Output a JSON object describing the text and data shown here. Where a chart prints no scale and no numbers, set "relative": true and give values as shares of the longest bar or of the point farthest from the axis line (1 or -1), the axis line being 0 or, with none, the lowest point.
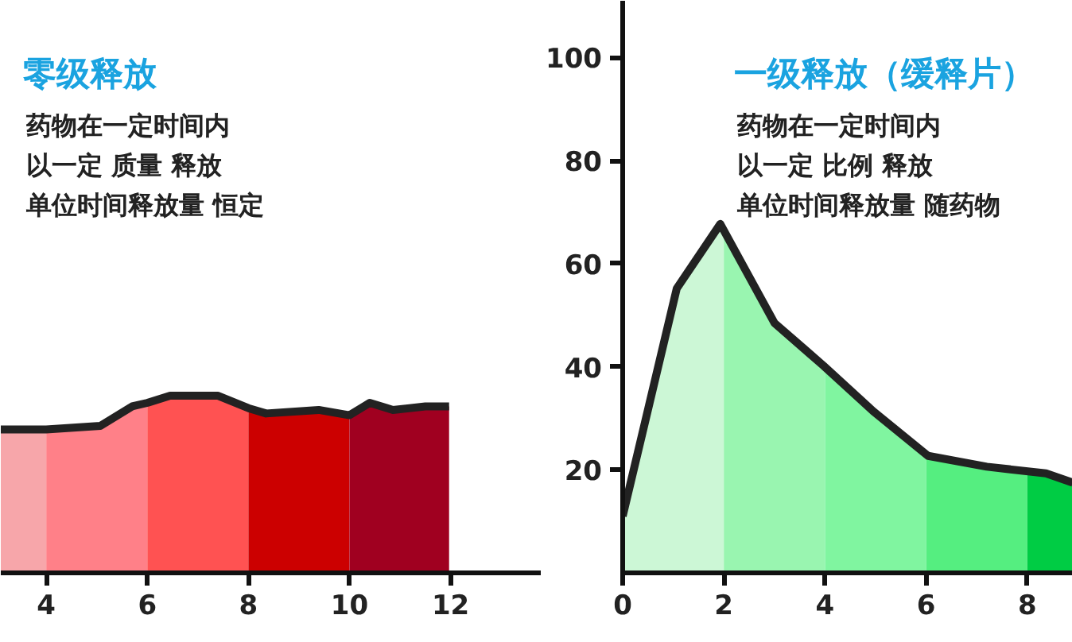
{
  "chart_data": [
    {
      "type": "area",
      "title": "零级释放",
      "annotations": [
        "药物在一定时间内",
        "以一定 质量 释放",
        "单位时间释放量 恒定"
      ],
      "relative": true,
      "xlim": [
        3.1,
        13.8
      ],
      "xticks": [
        4,
        6,
        8,
        10,
        12
      ],
      "tick_labels": "x",
      "grid": false,
      "series": [
        {
          "color": "#f7a6aa",
          "x": [
            3.1,
            4
          ],
          "values": [
            0.81,
            0.81
          ]
        },
        {
          "color": "#ff8088",
          "x": [
            4,
            5.07,
            5.7,
            6
          ],
          "values": [
            0.81,
            0.83,
            0.94,
            0.96
          ]
        },
        {
          "color": "#ff5252",
          "x": [
            6,
            6.45,
            7.4,
            8
          ],
          "values": [
            0.96,
            1,
            1,
            0.93
          ]
        },
        {
          "color": "#cc0000",
          "x": [
            8,
            8.35,
            9.39,
            10.0
          ],
          "values": [
            0.93,
            0.9,
            0.92,
            0.89
          ]
        },
        {
          "color": "#a00020",
          "x": [
            10.0,
            10.4,
            10.86,
            11.5,
            11.97
          ],
          "values": [
            0.89,
            0.96,
            0.92,
            0.94,
            0.94
          ]
        },
        {
          "type": "line",
          "color": "#222222",
          "x": [
            3.1,
            4,
            5.07,
            5.7,
            6,
            6.45,
            7.4,
            8,
            8.35,
            9.39,
            10.0,
            10.4,
            10.86,
            11.5,
            11.97
          ],
          "values": [
            0.81,
            0.81,
            0.83,
            0.94,
            0.96,
            1,
            1,
            0.93,
            0.9,
            0.92,
            0.89,
            0.96,
            0.92,
            0.94,
            0.94
          ]
        }
      ]
    },
    {
      "type": "area",
      "title": "一级释放（缓释片）",
      "annotations": [
        "药物在一定时间内",
        "以一定 比例 释放",
        "单位时间释放量 随药物"
      ],
      "xlim": [
        0,
        8.9
      ],
      "xticks": [
        0,
        2,
        4,
        6,
        8
      ],
      "ylim": [
        0,
        111
      ],
      "yticks": [
        20,
        40,
        60,
        80,
        100
      ],
      "grid": false,
      "series": [
        {
          "color": "#ccf7d6",
          "x": [
            0,
            1.07,
            1.93,
            2
          ],
          "values": [
            11,
            55.2,
            67.7,
            66.5
          ]
        },
        {
          "color": "#99f5b0",
          "x": [
            2,
            3.0,
            4
          ],
          "values": [
            66.5,
            48.5,
            40.0
          ]
        },
        {
          "color": "#80f5a0",
          "x": [
            4,
            4.95,
            6
          ],
          "values": [
            40.0,
            31.4,
            22.9
          ]
        },
        {
          "color": "#55ee80",
          "x": [
            6,
            6.04,
            7.2,
            8
          ],
          "values": [
            22.9,
            22.7,
            20.6,
            19.5
          ]
        },
        {
          "color": "#00cc44",
          "x": [
            8,
            8.37,
            8.9
          ],
          "values": [
            19.5,
            19.3,
            17.5
          ]
        },
        {
          "type": "line",
          "color": "#222222",
          "x": [
            0,
            1.07,
            1.93,
            3.0,
            3.97,
            4.95,
            6.04,
            7.2,
            8.37,
            8.9
          ],
          "values": [
            11,
            55.2,
            67.7,
            48.5,
            40.2,
            31.4,
            22.7,
            20.6,
            19.3,
            17.5
          ]
        }
      ]
    }
  ]
}
